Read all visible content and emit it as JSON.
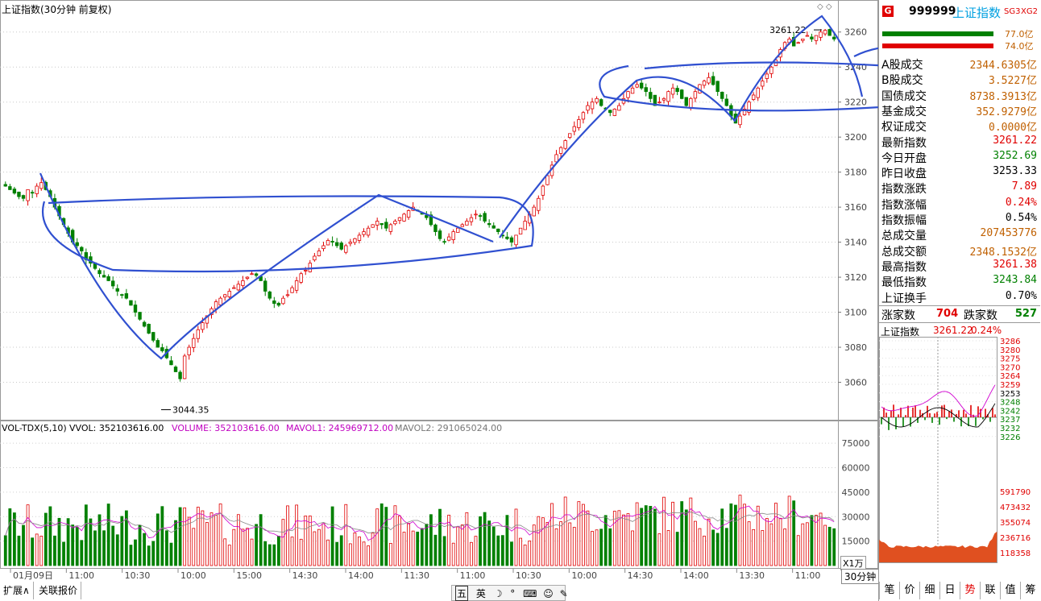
{
  "main_title": "上证指数(30分钟 前复权)",
  "markers": {
    "high_label": "3261.22",
    "low_label": "3044.35"
  },
  "chart_data": [
    {
      "type": "candlestick",
      "title": "上证指数(30分钟 前复权)",
      "ylim": [
        3040,
        3270
      ],
      "y_ticks": [
        3060,
        3080,
        3100,
        3120,
        3140,
        3160,
        3180,
        3200,
        3220,
        3240,
        3260
      ],
      "x_tick_labels": [
        "01月09日",
        "11:00",
        "10:30",
        "10:00",
        "15:00",
        "14:30",
        "14:00",
        "11:30",
        "11:00",
        "10:30",
        "10:00",
        "14:30",
        "14:00",
        "13:30",
        "11:00"
      ],
      "high": 3261.22,
      "low": 3044.35,
      "trend_close": [
        3172,
        3170,
        3168,
        3166,
        3165,
        3170,
        3168,
        3172,
        3174,
        3170,
        3166,
        3160,
        3155,
        3150,
        3145,
        3140,
        3138,
        3135,
        3130,
        3128,
        3125,
        3122,
        3120,
        3118,
        3115,
        3112,
        3110,
        3108,
        3104,
        3100,
        3096,
        3092,
        3088,
        3084,
        3080,
        3078,
        3074,
        3070,
        3066,
        3062,
        3075,
        3080,
        3085,
        3090,
        3094,
        3098,
        3102,
        3106,
        3108,
        3110,
        3112,
        3114,
        3116,
        3118,
        3120,
        3122,
        3121,
        3118,
        3112,
        3108,
        3105,
        3104,
        3108,
        3110,
        3114,
        3118,
        3122,
        3124,
        3128,
        3132,
        3135,
        3138,
        3141,
        3140,
        3138,
        3136,
        3138,
        3140,
        3142,
        3144,
        3146,
        3148,
        3150,
        3152,
        3150,
        3148,
        3150,
        3152,
        3154,
        3156,
        3158,
        3160,
        3158,
        3156,
        3154,
        3150,
        3146,
        3142,
        3140,
        3143,
        3146,
        3148,
        3150,
        3152,
        3154,
        3156,
        3155,
        3152,
        3150,
        3148,
        3146,
        3144,
        3142,
        3140,
        3144,
        3148,
        3152,
        3156,
        3160,
        3165,
        3172,
        3178,
        3184,
        3190,
        3194,
        3198,
        3202,
        3206,
        3210,
        3214,
        3218,
        3220,
        3222,
        3218,
        3216,
        3214,
        3216,
        3218,
        3222,
        3226,
        3228,
        3230,
        3228,
        3226,
        3222,
        3218,
        3220,
        3222,
        3226,
        3228,
        3226,
        3222,
        3218,
        3222,
        3226,
        3230,
        3232,
        3234,
        3230,
        3226,
        3222,
        3218,
        3212,
        3208,
        3212,
        3216,
        3220,
        3224,
        3228,
        3232,
        3236,
        3240,
        3244,
        3250,
        3254,
        3256,
        3252,
        3254,
        3256,
        3258,
        3256,
        3258,
        3260,
        3261,
        3258,
        3256
      ]
    },
    {
      "type": "bar",
      "title": "VOL-TDX(5,10)",
      "ylim": [
        0,
        80000
      ],
      "y_ticks": [
        15000,
        30000,
        45000,
        60000,
        75000
      ],
      "unit": "X1万",
      "legend": {
        "vvol": "VVOL: 352103616.00",
        "volume": "VOLUME: 352103616.00",
        "mavol1": "MAVOL1: 245969712.00",
        "mavol2": "MAVOL2: 291065024.00"
      }
    }
  ],
  "side": {
    "badge": "G",
    "code": "999999",
    "name": "上证指数",
    "tags": [
      "SG3",
      "XG2"
    ],
    "bar_top_value": "77.0亿",
    "bar_bottom_value": "74.0亿",
    "rows": [
      {
        "label": "A股成交",
        "value": "2344.6305亿",
        "color": "#c06000"
      },
      {
        "label": "B股成交",
        "value": "3.5227亿",
        "color": "#c06000"
      },
      {
        "label": "国债成交",
        "value": "8738.3913亿",
        "color": "#c06000"
      },
      {
        "label": "基金成交",
        "value": "352.9279亿",
        "color": "#c06000"
      },
      {
        "label": "权证成交",
        "value": "0.0000亿",
        "color": "#c06000"
      },
      {
        "label": "最新指数",
        "value": "3261.22",
        "color": "#e00000"
      },
      {
        "label": "今日开盘",
        "value": "3252.69",
        "color": "#008000"
      },
      {
        "label": "昨日收盘",
        "value": "3253.33",
        "color": "#000000"
      },
      {
        "label": "指数涨跌",
        "value": "7.89",
        "color": "#e00000"
      },
      {
        "label": "指数涨幅",
        "value": "0.24%",
        "color": "#e00000"
      },
      {
        "label": "指数振幅",
        "value": "0.54%",
        "color": "#000000"
      },
      {
        "label": "总成交量",
        "value": "207453776",
        "color": "#c06000"
      },
      {
        "label": "总成交额",
        "value": "2348.1532亿",
        "color": "#c06000"
      },
      {
        "label": "最高指数",
        "value": "3261.38",
        "color": "#e00000"
      },
      {
        "label": "最低指数",
        "value": "3243.84",
        "color": "#008000"
      },
      {
        "label": "上证换手",
        "value": "0.70%",
        "color": "#000000"
      }
    ],
    "rise_label": "涨家数",
    "rise_value": "704",
    "fall_label": "跌家数",
    "fall_value": "527",
    "mini_title": "上证指数",
    "mini_price": "3261.22",
    "mini_pct": "0.24%",
    "mini_price_ticks": [
      "3286",
      "3280",
      "3275",
      "3270",
      "3264",
      "3259",
      "3253",
      "3248",
      "3242",
      "3237",
      "3232",
      "3226"
    ],
    "mini_vol_ticks": [
      "591790",
      "473432",
      "355074",
      "236716",
      "118358"
    ],
    "mini_tabs": [
      "笔",
      "价",
      "细",
      "日",
      "势",
      "联",
      "值",
      "筹"
    ]
  },
  "bottom_tabs": [
    "扩展∧",
    "关联报价"
  ],
  "period_label": "30分钟",
  "toolbar_icons": [
    "五",
    "英"
  ]
}
